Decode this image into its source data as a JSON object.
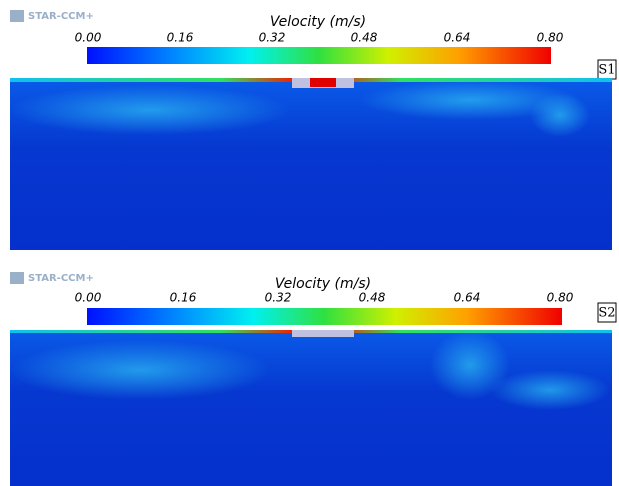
{
  "panels": [
    {
      "logo": "STAR-CCM+",
      "title": "Velocity (m/s)",
      "ticks": [
        "0.00",
        "0.16",
        "0.32",
        "0.48",
        "0.64",
        "0.80"
      ],
      "label": "S1"
    },
    {
      "logo": "STAR-CCM+",
      "title": "Velocity (m/s)",
      "ticks": [
        "0.00",
        "0.16",
        "0.32",
        "0.48",
        "0.64",
        "0.80"
      ],
      "label": "S2"
    }
  ]
}
